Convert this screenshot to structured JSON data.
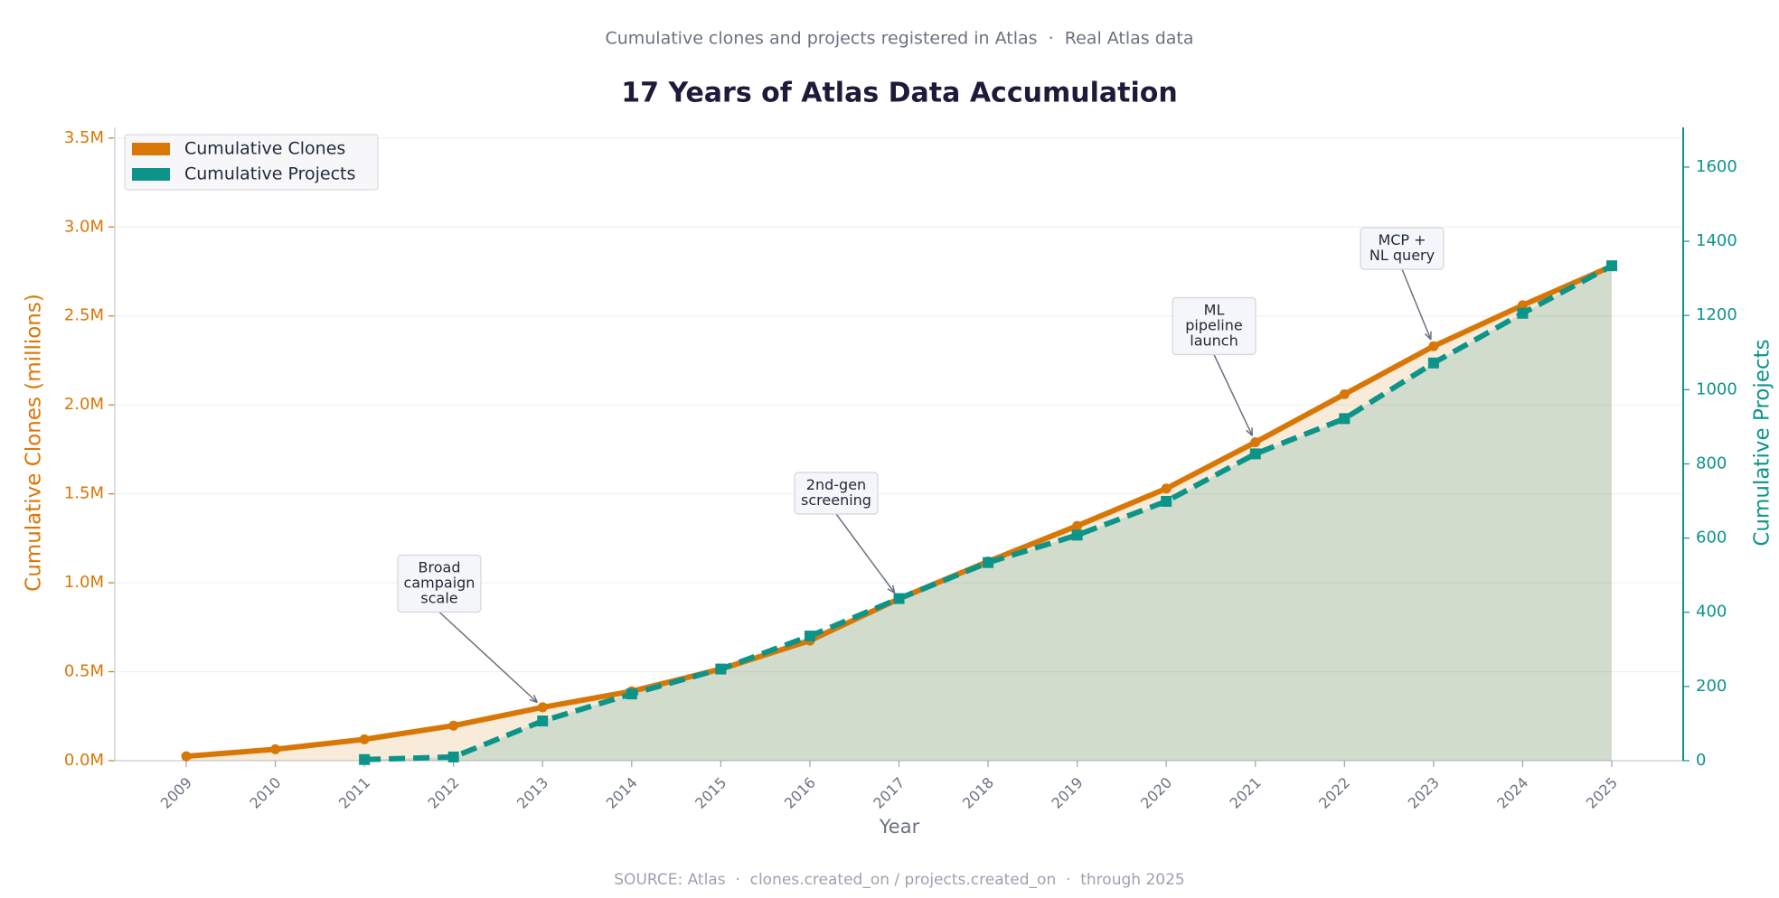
{
  "chart_data": {
    "type": "area-line",
    "subtitle": "Cumulative clones and projects registered in Atlas  ·  Real Atlas data",
    "title": "17 Years of Atlas Data Accumulation",
    "source": "SOURCE: Atlas  ·  clones.created_on / projects.created_on  ·  through 2025",
    "x_label": "Year",
    "y_label": "Cumulative Clones (millions)",
    "y2_label": "Cumulative Projects",
    "categories": [
      "2009",
      "2010",
      "2011",
      "2012",
      "2013",
      "2014",
      "2015",
      "2016",
      "2017",
      "2018",
      "2019",
      "2020",
      "2021",
      "2022",
      "2023",
      "2024",
      "2025"
    ],
    "series": [
      {
        "name": "Cumulative Clones",
        "color": "#d97706",
        "axis": "y",
        "values": [
          0.025,
          0.064,
          0.12,
          0.197,
          0.3,
          0.39,
          0.515,
          0.675,
          0.91,
          1.12,
          1.32,
          1.53,
          1.79,
          2.06,
          2.33,
          2.56,
          2.78
        ]
      },
      {
        "name": "Cumulative Projects",
        "color": "#0d9488",
        "axis": "y2",
        "values": [
          null,
          null,
          3,
          10,
          107,
          180,
          247,
          336,
          437,
          534,
          608,
          699,
          827,
          922,
          1072,
          1206,
          1334
        ]
      }
    ],
    "ylim": [
      0,
      3.56
    ],
    "yticks": [
      {
        "value": 0,
        "label": "0.0M"
      },
      {
        "value": 0.5,
        "label": "0.5M"
      },
      {
        "value": 1,
        "label": "1.0M"
      },
      {
        "value": 1.5,
        "label": "1.5M"
      },
      {
        "value": 2,
        "label": "2.0M"
      },
      {
        "value": 2.5,
        "label": "2.5M"
      },
      {
        "value": 3,
        "label": "3.0M"
      },
      {
        "value": 3.5,
        "label": "3.5M"
      }
    ],
    "y2lim": [
      0,
      1707
    ],
    "y2ticks": [
      0,
      200,
      400,
      600,
      800,
      1000,
      1200,
      1400,
      1600
    ],
    "grid": true,
    "legend": "upper-left",
    "annotations": [
      {
        "text": [
          "Broad",
          "campaign",
          "scale"
        ],
        "x": "2013"
      },
      {
        "text": [
          "2nd-gen",
          "screening"
        ],
        "x": "2017"
      },
      {
        "text": [
          "ML",
          "pipeline",
          "launch"
        ],
        "x": "2021"
      },
      {
        "text": [
          "MCP +",
          "NL query"
        ],
        "x": "2023"
      }
    ]
  }
}
